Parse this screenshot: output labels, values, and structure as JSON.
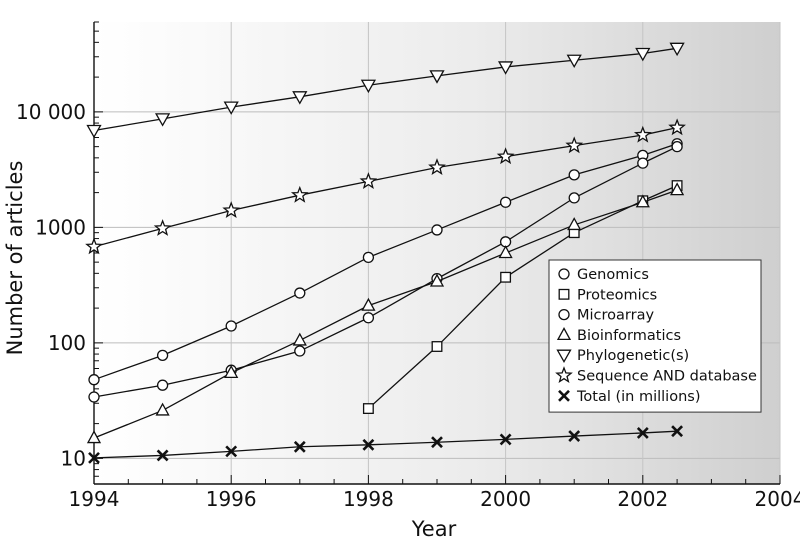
{
  "chart_data": {
    "type": "line",
    "title": "",
    "xlabel": "Year",
    "ylabel": "Number of articles",
    "xlim": [
      1994,
      2004
    ],
    "ylim": [
      6,
      60000
    ],
    "yscale": "log",
    "grid": true,
    "legend_position": "middle-right",
    "xticks": [
      1994,
      1996,
      1998,
      2000,
      2002,
      2004
    ],
    "x_tick_labels": [
      "1994",
      "1996",
      "1998",
      "2000",
      "2002",
      "2004"
    ],
    "yticks": [
      10,
      100,
      1000,
      10000
    ],
    "y_tick_labels": [
      "10",
      "100",
      "1000",
      "10 000"
    ],
    "series": [
      {
        "name": "Genomics",
        "marker": "circle",
        "x": [
          1994,
          1995,
          1996,
          1997,
          1998,
          1999,
          2000,
          2001,
          2002,
          2002.5
        ],
        "y": [
          48,
          78,
          140,
          270,
          550,
          950,
          1650,
          2850,
          4200,
          5300
        ]
      },
      {
        "name": "Proteomics",
        "marker": "square",
        "x": [
          1998,
          1999,
          2000,
          2001,
          2002,
          2002.5
        ],
        "y": [
          27,
          93,
          370,
          900,
          1700,
          2300
        ]
      },
      {
        "name": "Microarray",
        "marker": "circle",
        "x": [
          1994,
          1995,
          1996,
          1997,
          1998,
          1999,
          2000,
          2001,
          2002,
          2002.5
        ],
        "y": [
          34,
          43,
          58,
          85,
          165,
          360,
          750,
          1800,
          3600,
          5000
        ]
      },
      {
        "name": "Bioinformatics",
        "marker": "triangle-up",
        "x": [
          1994,
          1995,
          1996,
          1997,
          1998,
          1999,
          2000,
          2001,
          2002,
          2002.5
        ],
        "y": [
          15,
          26,
          55,
          105,
          210,
          340,
          600,
          1050,
          1650,
          2100
        ]
      },
      {
        "name": "Phylogenetic(s)",
        "marker": "triangle-down",
        "x": [
          1994,
          1995,
          1996,
          1997,
          1998,
          1999,
          2000,
          2001,
          2002,
          2002.5
        ],
        "y": [
          6900,
          8700,
          11000,
          13500,
          17000,
          20500,
          24500,
          28000,
          32000,
          35500
        ]
      },
      {
        "name": "Sequence AND database",
        "marker": "star",
        "x": [
          1994,
          1995,
          1996,
          1997,
          1998,
          1999,
          2000,
          2001,
          2002,
          2002.5
        ],
        "y": [
          680,
          980,
          1400,
          1900,
          2500,
          3300,
          4100,
          5100,
          6300,
          7300
        ]
      },
      {
        "name": "Total (in millions)",
        "marker": "x",
        "x": [
          1994,
          1995,
          1996,
          1997,
          1998,
          1999,
          2000,
          2001,
          2002,
          2002.5
        ],
        "y": [
          10.1,
          10.6,
          11.5,
          12.6,
          13.1,
          13.8,
          14.6,
          15.6,
          16.6,
          17.2
        ]
      }
    ]
  }
}
